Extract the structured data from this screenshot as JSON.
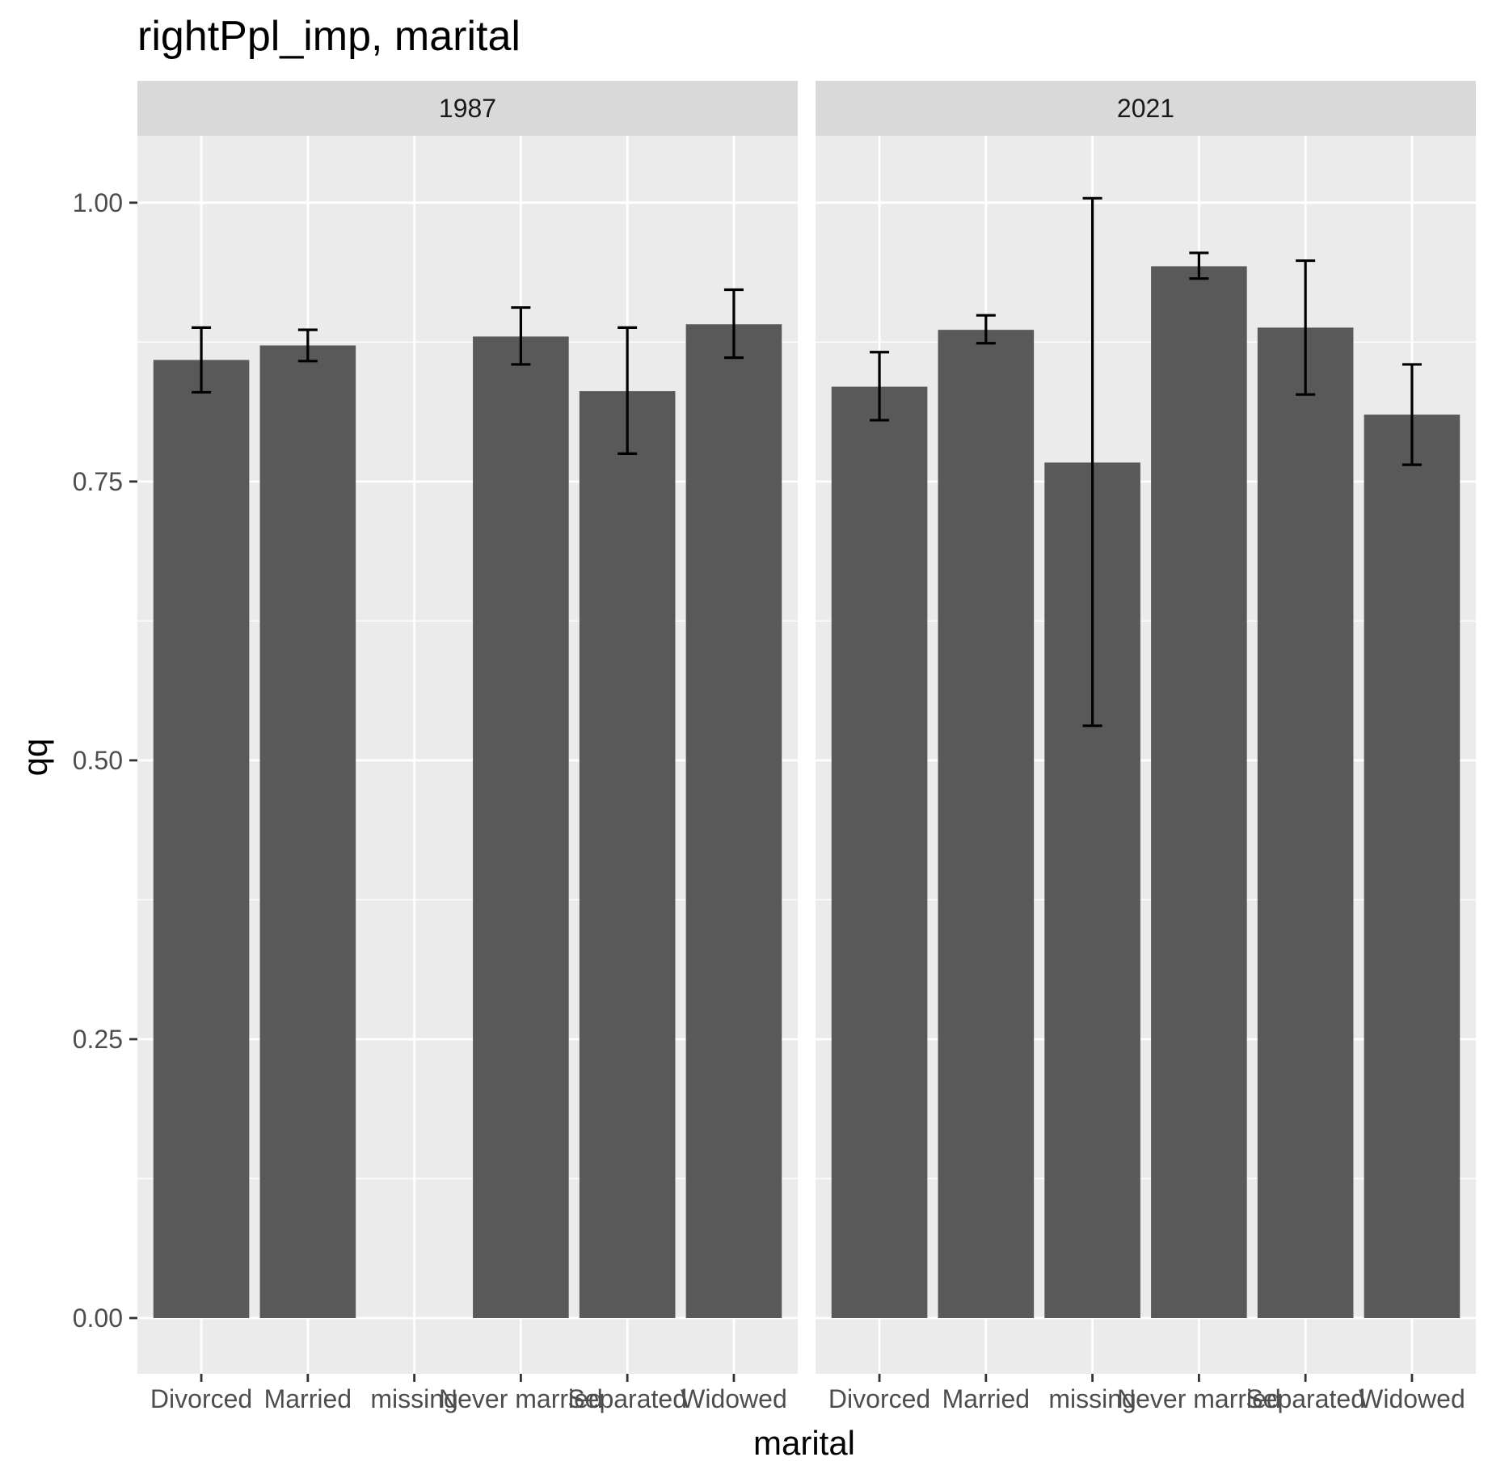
{
  "chart_data": {
    "type": "bar",
    "title": "rightPpl_imp, marital",
    "xlabel": "marital",
    "ylabel": "qq",
    "ylim": [
      -0.05,
      1.06
    ],
    "yticks": [
      "0.00",
      "0.25",
      "0.50",
      "0.75",
      "1.00"
    ],
    "ytick_values": [
      0,
      0.25,
      0.5,
      0.75,
      1.0
    ],
    "categories": [
      "Divorced",
      "Married",
      "missing",
      "Never married",
      "Separated",
      "Widowed"
    ],
    "grid": true,
    "colors": {
      "bar": "#595959",
      "panel": "#ebebeb",
      "strip": "#d9d9d9",
      "grid": "#ffffff",
      "errorbar": "#000000"
    },
    "facets": [
      {
        "label": "1987",
        "values": [
          0.859,
          0.872,
          null,
          0.88,
          0.831,
          0.891
        ],
        "lower": [
          0.83,
          0.858,
          null,
          0.855,
          0.775,
          0.861
        ],
        "upper": [
          0.888,
          0.886,
          null,
          0.906,
          0.888,
          0.922
        ]
      },
      {
        "label": "2021",
        "values": [
          0.835,
          0.886,
          0.767,
          0.943,
          0.888,
          0.81
        ],
        "lower": [
          0.805,
          0.874,
          0.531,
          0.932,
          0.828,
          0.765
        ],
        "upper": [
          0.866,
          0.899,
          1.004,
          0.955,
          0.948,
          0.855
        ]
      }
    ]
  }
}
